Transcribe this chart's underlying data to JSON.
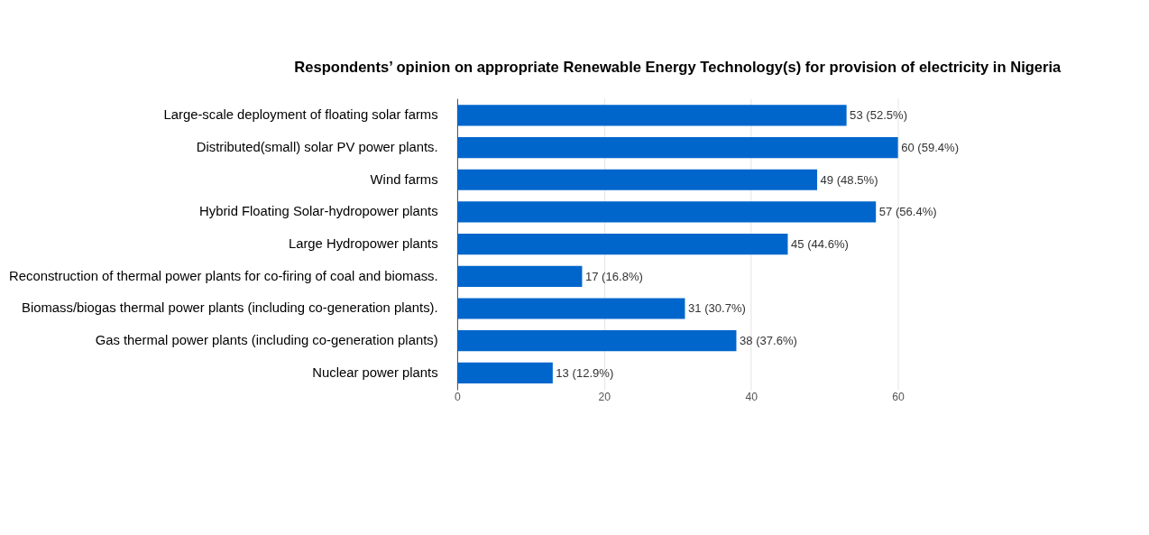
{
  "chart_data": {
    "type": "bar",
    "orientation": "horizontal",
    "title": "Respondents’ opinion on appropriate Renewable Energy Technology(s) for provision of electricity in Nigeria",
    "categories": [
      "Large-scale deployment of floating solar farms",
      "Distributed(small) solar PV power plants.",
      "Wind farms",
      "Hybrid Floating Solar-hydropower plants",
      "Large Hydropower plants",
      "Reconstruction of thermal power plants for co-firing of coal and biomass.",
      "Biomass/biogas thermal power plants (including co-generation plants).",
      "Gas thermal power plants (including co-generation plants)",
      "Nuclear power plants"
    ],
    "values": [
      53,
      60,
      49,
      57,
      45,
      17,
      31,
      38,
      13
    ],
    "value_labels": [
      "53 (52.5%)",
      "60 (59.4%)",
      "49 (48.5%)",
      "57 (56.4%)",
      "45 (44.6%)",
      "17 (16.8%)",
      "31 (30.7%)",
      "38 (37.6%)",
      "13 (12.9%)"
    ],
    "color": "#0066cc",
    "xlim": [
      0,
      60
    ],
    "xticks": [
      0,
      20,
      40,
      60
    ],
    "grid": "x"
  }
}
